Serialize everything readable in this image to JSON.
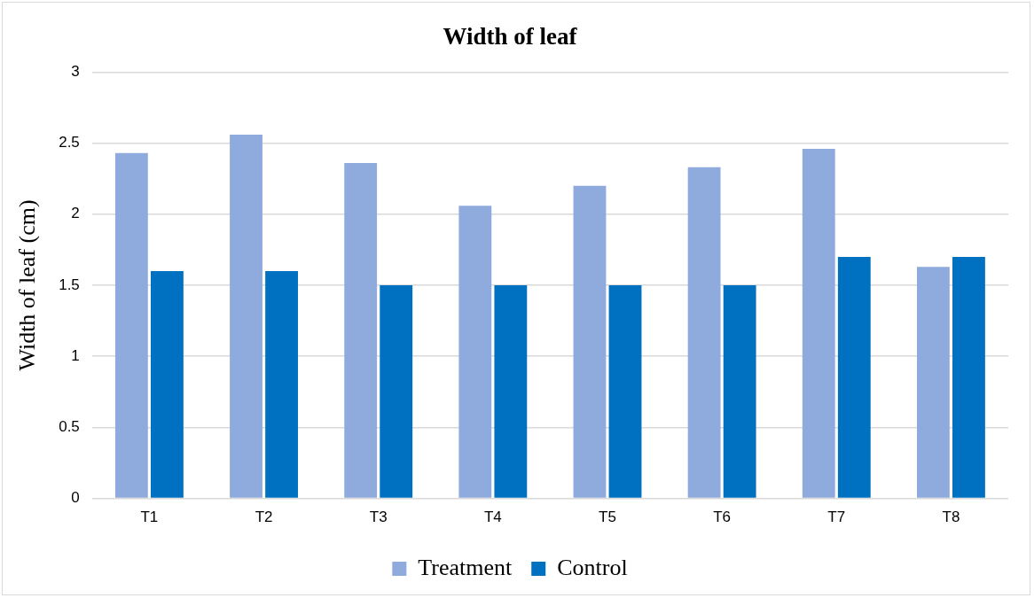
{
  "chart_data": {
    "type": "bar",
    "title": "Width of leaf",
    "ylabel": "Width of leaf (cm)",
    "categories": [
      "T1",
      "T2",
      "T3",
      "T4",
      "T5",
      "T6",
      "T7",
      "T8"
    ],
    "series": [
      {
        "name": "Treatment",
        "color": "#8faadc",
        "values": [
          2.43,
          2.56,
          2.36,
          2.06,
          2.2,
          2.33,
          2.46,
          1.63
        ]
      },
      {
        "name": "Control",
        "color": "#0070c0",
        "values": [
          1.6,
          1.6,
          1.5,
          1.5,
          1.5,
          1.5,
          1.7,
          1.7
        ]
      }
    ],
    "ylim": [
      0,
      3
    ],
    "yticks": [
      0,
      {
        "value": 0.5,
        "label": "0.5"
      },
      1,
      {
        "value": 1.5,
        "label": "1.5"
      },
      2,
      {
        "value": 2.5,
        "label": "2.5"
      },
      3
    ],
    "grid": "y",
    "legend": "bottom"
  }
}
